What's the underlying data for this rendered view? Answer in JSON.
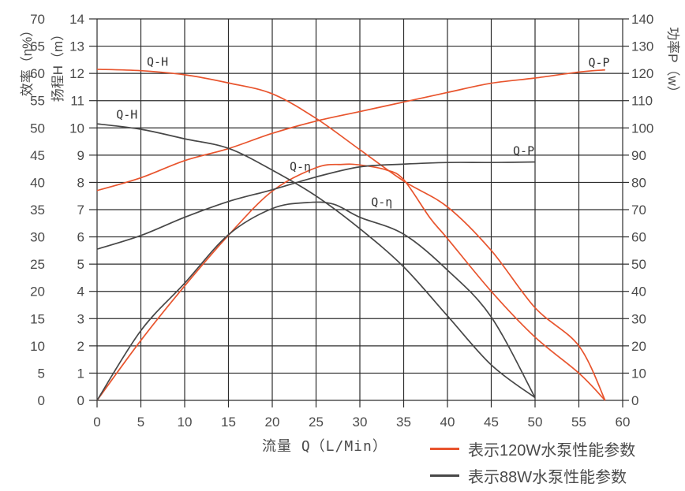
{
  "chart_data": {
    "type": "line",
    "title": "",
    "grid": true,
    "x_axis": {
      "label": "流量 Q（L/Min）",
      "min": 0,
      "max": 60,
      "ticks": [
        0,
        5,
        10,
        15,
        20,
        25,
        30,
        35,
        40,
        45,
        50,
        55,
        60
      ]
    },
    "y_axes": [
      {
        "id": "eta",
        "label": "效率（η%）",
        "min": 0,
        "max": 70,
        "ticks": [
          70,
          65,
          60,
          55,
          50,
          45,
          40,
          35,
          30,
          25,
          20,
          15,
          10,
          5,
          0
        ]
      },
      {
        "id": "H",
        "label": "扬程H（m）",
        "min": 0,
        "max": 14,
        "ticks": [
          14,
          13,
          12,
          11,
          10,
          9,
          8,
          7,
          6,
          5,
          4,
          3,
          2,
          1,
          0
        ]
      },
      {
        "id": "P",
        "label": "功率P（w）",
        "min": 0,
        "max": 140,
        "ticks": [
          140,
          130,
          120,
          110,
          100,
          90,
          80,
          70,
          60,
          50,
          40,
          30,
          20,
          10,
          0
        ]
      }
    ],
    "series": [
      {
        "name": "120W Q-H",
        "axis": "H",
        "color": "#e8542d",
        "points": [
          [
            0,
            12.15
          ],
          [
            5,
            12.1
          ],
          [
            10,
            11.95
          ],
          [
            15,
            11.65
          ],
          [
            20,
            11.25
          ],
          [
            25,
            10.35
          ],
          [
            30,
            9.2
          ],
          [
            35,
            8.05
          ],
          [
            40,
            7.1
          ],
          [
            45,
            5.5
          ],
          [
            50,
            3.4
          ],
          [
            55,
            2.0
          ],
          [
            58,
            0
          ]
        ]
      },
      {
        "name": "120W Q-P",
        "axis": "P",
        "color": "#e8542d",
        "points": [
          [
            0,
            77
          ],
          [
            5,
            81.7
          ],
          [
            10,
            88
          ],
          [
            15,
            92.4
          ],
          [
            20,
            98
          ],
          [
            25,
            102.5
          ],
          [
            30,
            106
          ],
          [
            35,
            109.5
          ],
          [
            40,
            113
          ],
          [
            45,
            116.4
          ],
          [
            50,
            118.3
          ],
          [
            55,
            120.5
          ],
          [
            58,
            121.3
          ]
        ]
      },
      {
        "name": "120W Q-η",
        "axis": "eta",
        "color": "#e8542d",
        "points": [
          [
            0,
            0
          ],
          [
            5,
            11
          ],
          [
            10,
            21
          ],
          [
            15,
            30.3
          ],
          [
            20,
            38.4
          ],
          [
            25,
            42.7
          ],
          [
            28,
            43.3
          ],
          [
            30,
            43.2
          ],
          [
            33,
            42.3
          ],
          [
            35,
            40.5
          ],
          [
            38,
            33.5
          ],
          [
            40,
            29.7
          ],
          [
            45,
            20
          ],
          [
            50,
            11.6
          ],
          [
            55,
            5
          ],
          [
            58,
            0
          ]
        ]
      },
      {
        "name": "88W Q-H",
        "axis": "H",
        "color": "#474747",
        "points": [
          [
            0,
            10.15
          ],
          [
            5,
            9.95
          ],
          [
            10,
            9.6
          ],
          [
            15,
            9.25
          ],
          [
            20,
            8.45
          ],
          [
            25,
            7.5
          ],
          [
            30,
            6.3
          ],
          [
            35,
            4.9
          ],
          [
            40,
            3.1
          ],
          [
            45,
            1.3
          ],
          [
            50,
            0.1
          ]
        ]
      },
      {
        "name": "88W Q-P",
        "axis": "P",
        "color": "#474747",
        "points": [
          [
            0,
            55.5
          ],
          [
            5,
            60.5
          ],
          [
            10,
            67.2
          ],
          [
            15,
            73
          ],
          [
            20,
            77.3
          ],
          [
            25,
            82
          ],
          [
            30,
            85.7
          ],
          [
            35,
            86.7
          ],
          [
            40,
            87.3
          ],
          [
            45,
            87.3
          ],
          [
            50,
            87.5
          ]
        ]
      },
      {
        "name": "88W Q-η",
        "axis": "eta",
        "color": "#474747",
        "points": [
          [
            0,
            0
          ],
          [
            5,
            12.8
          ],
          [
            10,
            21.5
          ],
          [
            15,
            30.4
          ],
          [
            20,
            35.2
          ],
          [
            24,
            36.3
          ],
          [
            27,
            36
          ],
          [
            30,
            33.6
          ],
          [
            35,
            30.5
          ],
          [
            40,
            23.9
          ],
          [
            45,
            15.3
          ],
          [
            50,
            0.5
          ]
        ]
      }
    ],
    "curve_labels": [
      {
        "text": "Q-H",
        "axis": "H",
        "q": 6.9,
        "v": 12.42
      },
      {
        "text": "Q-H",
        "axis": "H",
        "q": 3.4,
        "v": 10.48
      },
      {
        "text": "Q-P",
        "axis": "P",
        "q": 57.3,
        "v": 123.9
      },
      {
        "text": "Q-P",
        "axis": "P",
        "q": 48.7,
        "v": 91.5
      },
      {
        "text": "Q-η",
        "axis": "eta",
        "q": 23.2,
        "v": 42.9
      },
      {
        "text": "Q-η",
        "axis": "eta",
        "q": 32.5,
        "v": 36.4
      }
    ],
    "legend": [
      {
        "label": "表示120W水泵性能参数",
        "color": "#e8542d"
      },
      {
        "label": "表示88W水泵性能参数",
        "color": "#474747"
      }
    ],
    "colors": {
      "grid": "#2d2d2d",
      "text": "#4a4a4a",
      "curve_label": "#333333"
    }
  }
}
